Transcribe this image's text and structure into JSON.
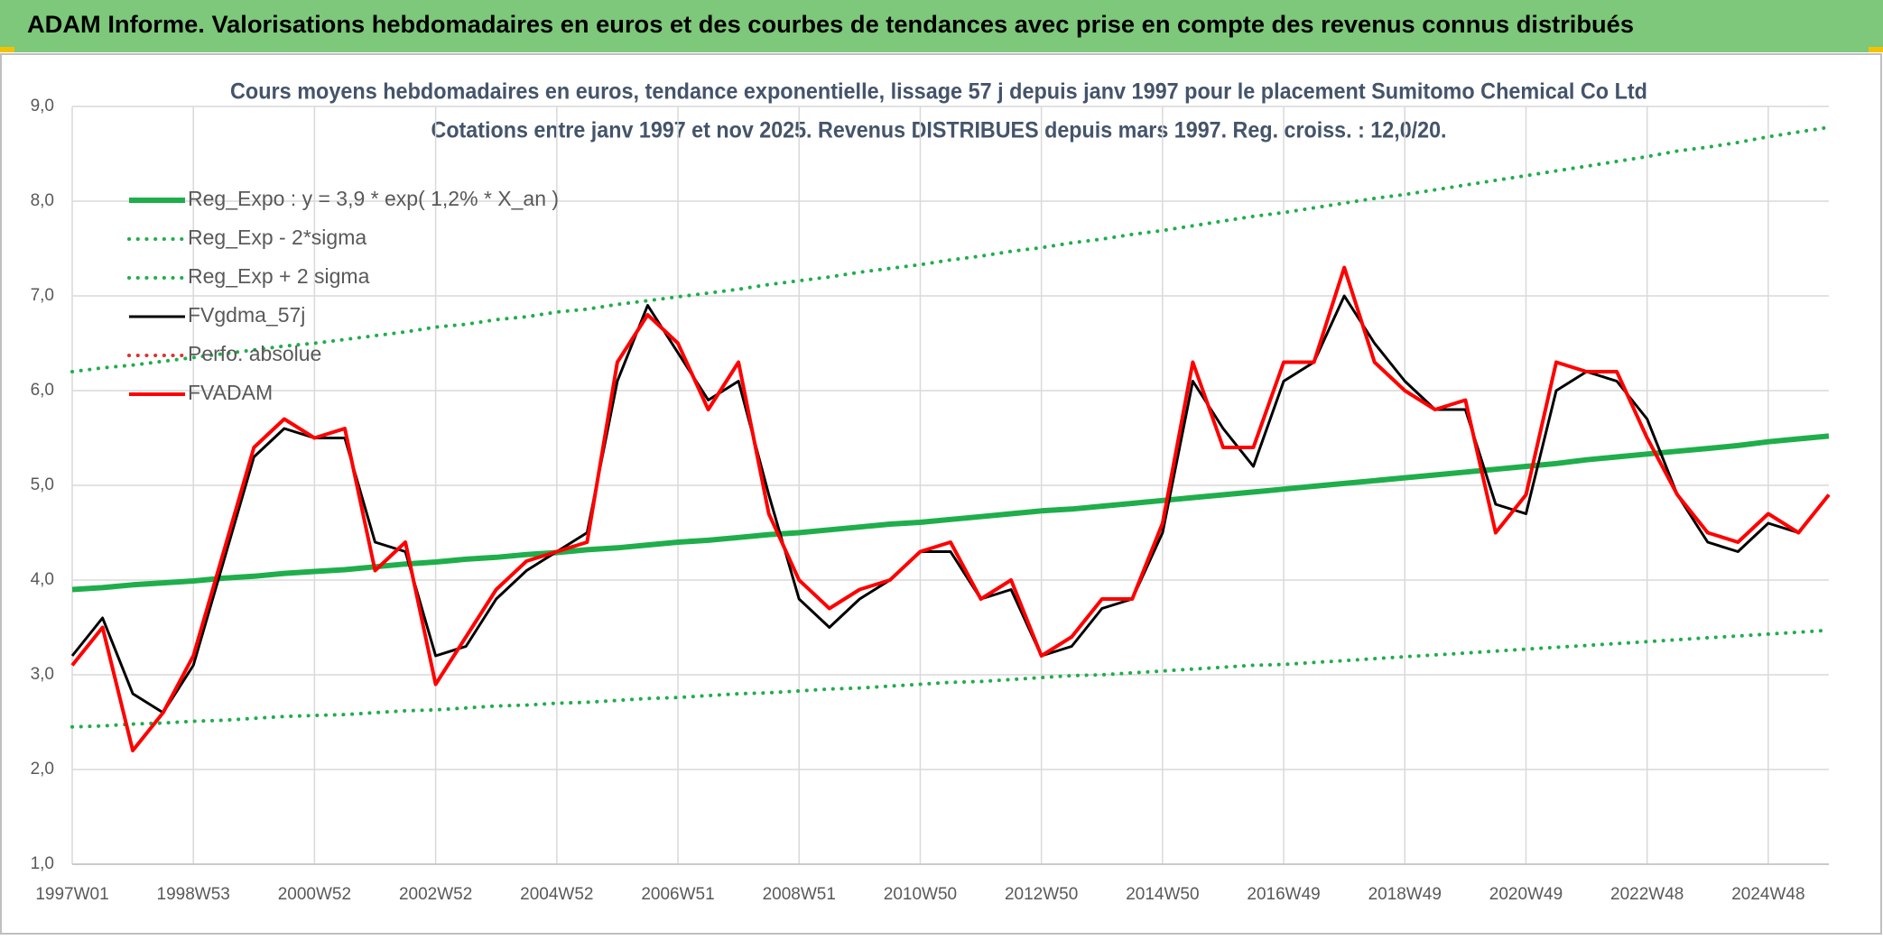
{
  "header": {
    "title": "ADAM Informe. Valorisations hebdomadaires en euros et des courbes de tendances avec prise en compte des revenus connus distribués"
  },
  "chart_data": {
    "type": "line",
    "title": "Cours moyens hebdomadaires en euros, tendance exponentielle, lissage 57 j depuis janv 1997 pour le placement Sumitomo Chemical Co Ltd",
    "subtitle": "Cotations entre janv 1997 et nov 2025. Revenus DISTRIBUES depuis mars 1997. Reg. croiss. : 12,0/20.",
    "categories": [
      "1997W01",
      null,
      null,
      null,
      "1998W53",
      null,
      null,
      null,
      "2000W52",
      null,
      null,
      null,
      "2002W52",
      null,
      null,
      null,
      "2004W52",
      null,
      null,
      null,
      "2006W51",
      null,
      null,
      null,
      "2008W51",
      null,
      null,
      null,
      "2010W50",
      null,
      null,
      null,
      "2012W50",
      null,
      null,
      null,
      "2014W50",
      null,
      null,
      null,
      "2016W49",
      null,
      null,
      null,
      "2018W49",
      null,
      null,
      null,
      "2020W49",
      null,
      null,
      null,
      "2022W48",
      null,
      null,
      null,
      "2024W48",
      null,
      null
    ],
    "ylim": [
      1,
      9
    ],
    "yticks": [
      {
        "value": 1,
        "label": "1,0"
      },
      {
        "value": 2,
        "label": "2,0"
      },
      {
        "value": 3,
        "label": "3,0"
      },
      {
        "value": 4,
        "label": "4,0"
      },
      {
        "value": 5,
        "label": "5,0"
      },
      {
        "value": 6,
        "label": "6,0"
      },
      {
        "value": 7,
        "label": "7,0"
      },
      {
        "value": 8,
        "label": "8,0"
      },
      {
        "value": 9,
        "label": "9,0"
      }
    ],
    "grid": true,
    "series": [
      {
        "name": "Reg_Expo : y = 3,9 * exp( 1,2% *  X_an )",
        "color": "#1fae4b",
        "style": "solid",
        "width": 6,
        "values": [
          3.9,
          3.92,
          3.95,
          3.97,
          3.99,
          4.02,
          4.04,
          4.07,
          4.09,
          4.11,
          4.14,
          4.17,
          4.19,
          4.22,
          4.24,
          4.27,
          4.29,
          4.32,
          4.34,
          4.37,
          4.4,
          4.42,
          4.45,
          4.48,
          4.5,
          4.53,
          4.56,
          4.59,
          4.61,
          4.64,
          4.67,
          4.7,
          4.73,
          4.75,
          4.78,
          4.81,
          4.84,
          4.87,
          4.9,
          4.93,
          4.96,
          4.99,
          5.02,
          5.05,
          5.08,
          5.11,
          5.14,
          5.17,
          5.2,
          5.23,
          5.27,
          5.3,
          5.33,
          5.36,
          5.39,
          5.42,
          5.46,
          5.49,
          5.52
        ]
      },
      {
        "name": "Reg_Exp - 2*sigma",
        "color": "#1fae4b",
        "style": "dotted",
        "width": 4,
        "values": [
          2.45,
          2.46,
          2.48,
          2.49,
          2.51,
          2.52,
          2.54,
          2.56,
          2.57,
          2.58,
          2.6,
          2.62,
          2.63,
          2.65,
          2.67,
          2.68,
          2.7,
          2.71,
          2.73,
          2.75,
          2.76,
          2.78,
          2.8,
          2.81,
          2.83,
          2.85,
          2.86,
          2.88,
          2.9,
          2.92,
          2.93,
          2.95,
          2.97,
          2.99,
          3.0,
          3.02,
          3.04,
          3.06,
          3.08,
          3.1,
          3.11,
          3.13,
          3.15,
          3.17,
          3.19,
          3.21,
          3.23,
          3.25,
          3.27,
          3.29,
          3.31,
          3.33,
          3.35,
          3.37,
          3.39,
          3.41,
          3.43,
          3.45,
          3.47
        ]
      },
      {
        "name": "Reg_Exp + 2 sigma",
        "color": "#1fae4b",
        "style": "dotted",
        "width": 4,
        "values": [
          6.2,
          6.24,
          6.27,
          6.31,
          6.35,
          6.39,
          6.43,
          6.47,
          6.5,
          6.54,
          6.58,
          6.62,
          6.67,
          6.7,
          6.75,
          6.78,
          6.83,
          6.86,
          6.91,
          6.95,
          6.99,
          7.03,
          7.07,
          7.12,
          7.16,
          7.2,
          7.25,
          7.29,
          7.33,
          7.38,
          7.42,
          7.47,
          7.51,
          7.56,
          7.6,
          7.65,
          7.69,
          7.74,
          7.79,
          7.84,
          7.88,
          7.93,
          7.98,
          8.03,
          8.07,
          8.12,
          8.17,
          8.22,
          8.27,
          8.32,
          8.37,
          8.42,
          8.47,
          8.53,
          8.57,
          8.62,
          8.68,
          8.73,
          8.78
        ]
      },
      {
        "name": "FVgdma_57j",
        "color": "#000000",
        "style": "solid",
        "width": 3,
        "values": [
          3.2,
          3.6,
          2.8,
          2.6,
          3.1,
          4.2,
          5.3,
          5.6,
          5.5,
          5.5,
          4.4,
          4.3,
          3.2,
          3.3,
          3.8,
          4.1,
          4.3,
          4.5,
          6.1,
          6.9,
          6.4,
          5.9,
          6.1,
          4.9,
          3.8,
          3.5,
          3.8,
          4.0,
          4.3,
          4.3,
          3.8,
          3.9,
          3.2,
          3.3,
          3.7,
          3.8,
          4.5,
          6.1,
          5.6,
          5.2,
          6.1,
          6.3,
          7.0,
          6.5,
          6.1,
          5.8,
          5.8,
          4.8,
          4.7,
          6.0,
          6.2,
          6.1,
          5.7,
          4.9,
          4.4,
          4.3,
          4.6,
          4.5,
          4.9
        ]
      },
      {
        "name": "Perfo. absolue",
        "color": "#e03030",
        "style": "dotted",
        "width": 4,
        "values": [
          null,
          null,
          null,
          null,
          null,
          null,
          null,
          null,
          null,
          null,
          null,
          null,
          null,
          null,
          null,
          null,
          null,
          null,
          null,
          null,
          null,
          null,
          null,
          null,
          null,
          null,
          null,
          null,
          null,
          null,
          null,
          null,
          null,
          null,
          null,
          null,
          null,
          null,
          null,
          null,
          null,
          null,
          null,
          null,
          null,
          null,
          null,
          null,
          null,
          null,
          null,
          null,
          null,
          null,
          null,
          null,
          null,
          null,
          null
        ]
      },
      {
        "name": "FVADAM",
        "color": "#ff0000",
        "style": "solid",
        "width": 4,
        "values": [
          3.1,
          3.5,
          2.2,
          2.6,
          3.2,
          4.3,
          5.4,
          5.7,
          5.5,
          5.6,
          4.1,
          4.4,
          2.9,
          3.4,
          3.9,
          4.2,
          4.3,
          4.4,
          6.3,
          6.8,
          6.5,
          5.8,
          6.3,
          4.7,
          4.0,
          3.7,
          3.9,
          4.0,
          4.3,
          4.4,
          3.8,
          4.0,
          3.2,
          3.4,
          3.8,
          3.8,
          4.6,
          6.3,
          5.4,
          5.4,
          6.3,
          6.3,
          7.3,
          6.3,
          6.0,
          5.8,
          5.9,
          4.5,
          4.9,
          6.3,
          6.2,
          6.2,
          5.5,
          4.9,
          4.5,
          4.4,
          4.7,
          4.5,
          4.9
        ]
      }
    ]
  }
}
